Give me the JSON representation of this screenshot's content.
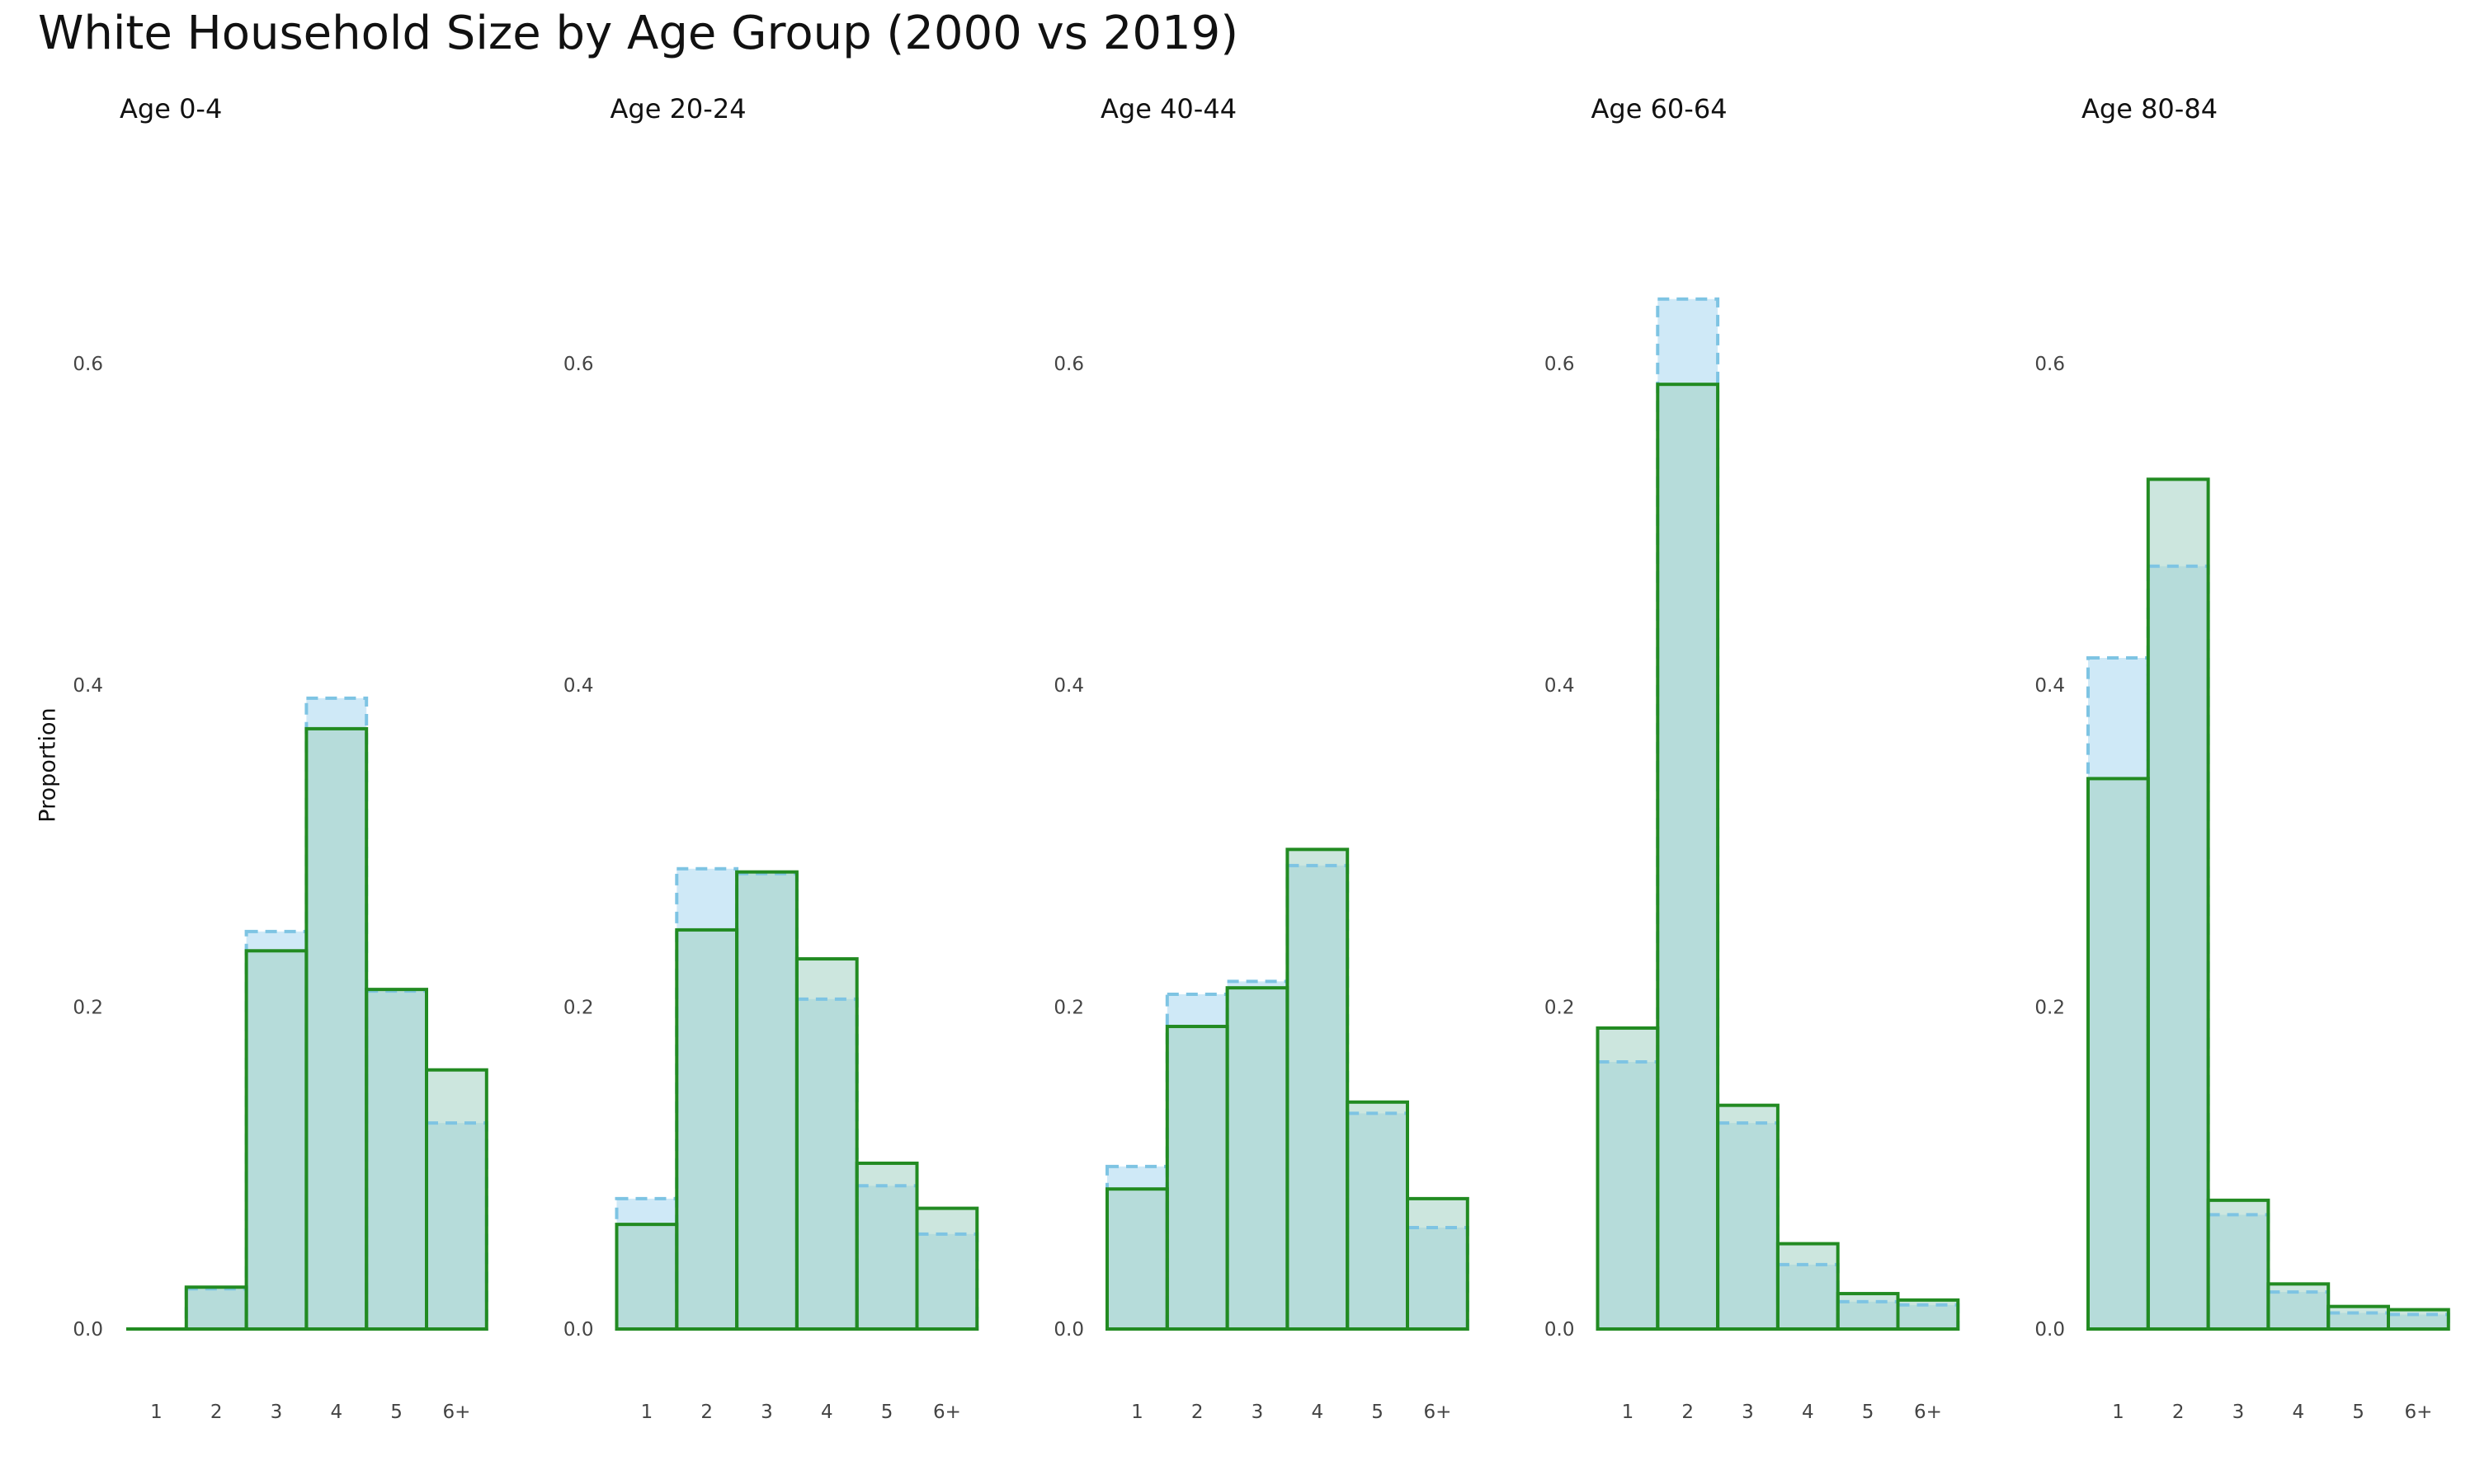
{
  "chart_data": {
    "type": "bar",
    "title": "White Household Size by Age Group (2000 vs 2019)",
    "ylabel": "Proportion",
    "xlabel": "",
    "ylim": [
      0,
      0.66
    ],
    "yticks": [
      "0.0",
      "0.2",
      "0.4",
      "0.6"
    ],
    "categories": [
      "1",
      "2",
      "3",
      "4",
      "5",
      "6+"
    ],
    "legend": "none",
    "grid": false,
    "colors": {
      "series_2000_fill": "#cfe9f7",
      "series_2000_stroke": "#7ec4e3",
      "series_2019_fill": "#a3d2c2",
      "series_2019_stroke": "#228b22"
    },
    "panels": [
      {
        "subtitle": "Age 0-4",
        "series": [
          {
            "values": [
              0.0,
              0.025,
              0.247,
              0.392,
              0.21,
              0.128
            ]
          },
          {
            "values": [
              0.0,
              0.026,
              0.235,
              0.373,
              0.211,
              0.161
            ]
          }
        ]
      },
      {
        "subtitle": "Age 20-24",
        "series": [
          {
            "values": [
              0.081,
              0.286,
              0.283,
              0.205,
              0.089,
              0.059
            ]
          },
          {
            "values": [
              0.065,
              0.248,
              0.284,
              0.23,
              0.103,
              0.075
            ]
          }
        ]
      },
      {
        "subtitle": "Age 40-44",
        "series": [
          {
            "values": [
              0.101,
              0.208,
              0.216,
              0.288,
              0.134,
              0.063
            ]
          },
          {
            "values": [
              0.087,
              0.188,
              0.212,
              0.298,
              0.141,
              0.081
            ]
          }
        ]
      },
      {
        "subtitle": "Age 60-64",
        "series": [
          {
            "values": [
              0.166,
              0.64,
              0.128,
              0.04,
              0.017,
              0.015
            ]
          },
          {
            "values": [
              0.187,
              0.587,
              0.139,
              0.053,
              0.022,
              0.018
            ]
          }
        ]
      },
      {
        "subtitle": "Age 80-84",
        "series": [
          {
            "values": [
              0.417,
              0.474,
              0.071,
              0.023,
              0.01,
              0.009
            ]
          },
          {
            "values": [
              0.342,
              0.528,
              0.08,
              0.028,
              0.014,
              0.012
            ]
          }
        ]
      }
    ]
  }
}
